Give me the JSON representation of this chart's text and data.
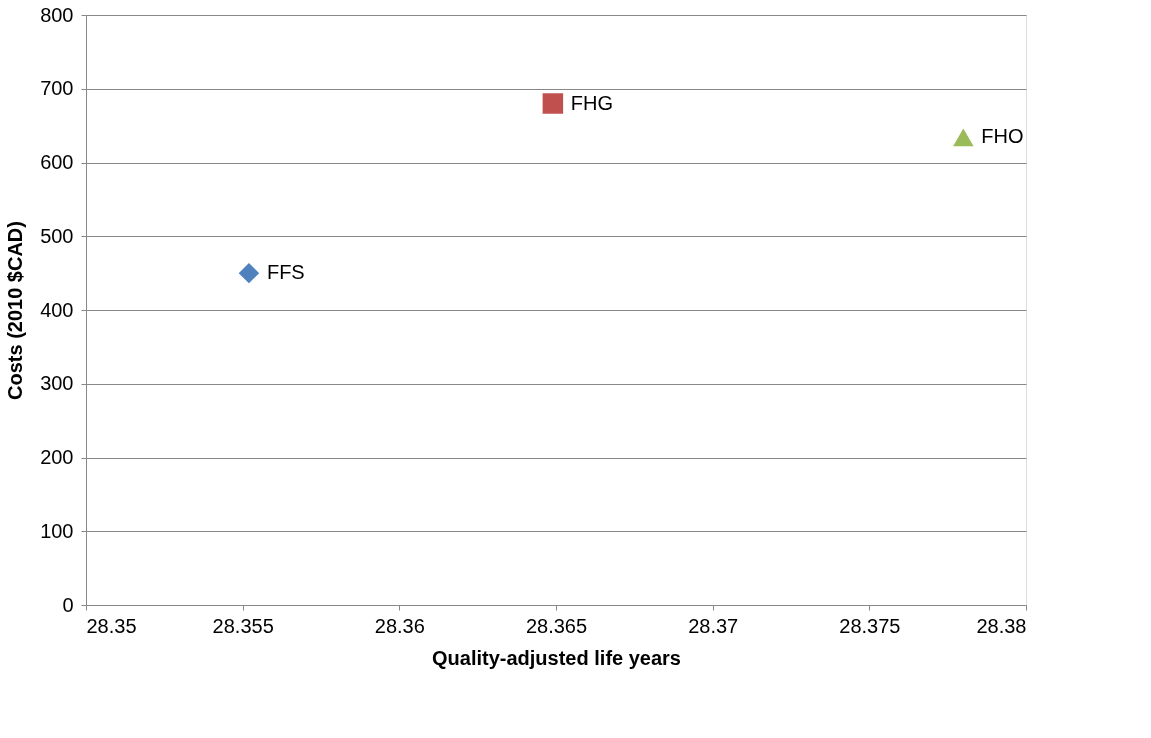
{
  "chart_data": {
    "type": "scatter",
    "xlabel": "Quality-adjusted life years",
    "ylabel": "Costs (2010 $CAD)",
    "series": [
      {
        "name": "FFS",
        "color": "#4f81bd",
        "marker": "diamond",
        "x": [
          28.3552
        ],
        "values": [
          450
        ]
      },
      {
        "name": "FHG",
        "color": "#c0504d",
        "marker": "square",
        "x": [
          28.3649
        ],
        "values": [
          680
        ]
      },
      {
        "name": "FHO",
        "color": "#9bbb59",
        "marker": "triangle",
        "x": [
          28.378
        ],
        "values": [
          634
        ]
      }
    ],
    "xlim": [
      28.35,
      28.38
    ],
    "xticks": [
      28.35,
      28.355,
      28.36,
      28.365,
      28.37,
      28.375,
      28.38
    ],
    "ylim": [
      0,
      800
    ],
    "yticks": [
      0,
      100,
      200,
      300,
      400,
      500,
      600,
      700,
      800
    ],
    "grid": "y",
    "legend": false
  }
}
